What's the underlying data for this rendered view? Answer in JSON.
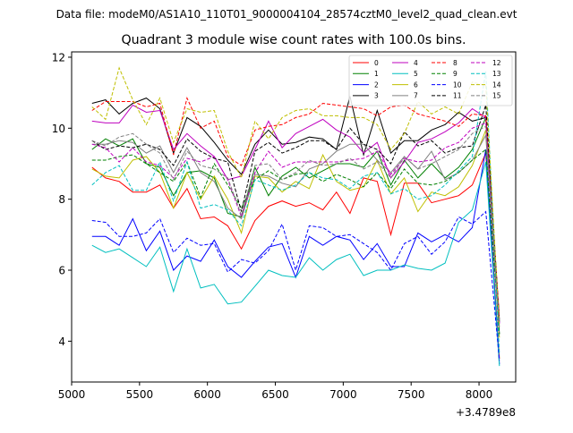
{
  "figure": {
    "suptitle": "Data file: modeM0/AS1A10_110T01_9000004104_28574cztM0_level2_quad_clean.evt"
  },
  "chart_data": {
    "type": "line",
    "title": "Quadrant 3 module wise count rates with 100.0s bins.",
    "xlabel": "",
    "ylabel": "",
    "x_offset_label": "+3.4789e8",
    "xlim": [
      5000,
      8270
    ],
    "ylim": [
      2.85,
      12.15
    ],
    "xticks": [
      "5000",
      "5500",
      "6000",
      "6500",
      "7000",
      "7500",
      "8000"
    ],
    "yticks": [
      "4",
      "6",
      "8",
      "10",
      "12"
    ],
    "x": [
      5150,
      5250,
      5350,
      5450,
      5550,
      5650,
      5750,
      5850,
      5950,
      6050,
      6150,
      6250,
      6350,
      6450,
      6550,
      6650,
      6750,
      6850,
      6950,
      7050,
      7150,
      7250,
      7350,
      7450,
      7550,
      7650,
      7750,
      7850,
      7950,
      8050,
      8150
    ],
    "legend": {
      "position": "upper right",
      "columns": 4
    },
    "series": [
      {
        "name": "0",
        "color": "#ff0000",
        "dash": "solid",
        "values": [
          8.9,
          8.6,
          8.5,
          8.2,
          8.2,
          8.4,
          7.75,
          8.3,
          7.45,
          7.5,
          7.25,
          6.6,
          7.4,
          7.8,
          7.95,
          7.8,
          7.9,
          7.7,
          8.2,
          7.6,
          8.6,
          8.5,
          7.0,
          8.45,
          8.45,
          7.9,
          8.0,
          8.1,
          8.4,
          9.3,
          3.5
        ]
      },
      {
        "name": "1",
        "color": "#008000",
        "dash": "solid",
        "values": [
          9.4,
          9.7,
          9.5,
          9.7,
          9.0,
          8.9,
          8.1,
          8.75,
          8.8,
          8.6,
          7.6,
          7.5,
          8.9,
          8.1,
          8.65,
          8.9,
          8.6,
          8.8,
          9.0,
          9.0,
          8.9,
          9.35,
          8.4,
          9.1,
          8.6,
          9.0,
          8.6,
          8.9,
          9.4,
          10.3,
          4.2
        ]
      },
      {
        "name": "2",
        "color": "#0000ff",
        "dash": "solid",
        "values": [
          6.95,
          6.95,
          6.7,
          7.45,
          6.55,
          7.1,
          6.0,
          6.4,
          6.25,
          6.85,
          6.1,
          5.8,
          6.25,
          6.65,
          6.75,
          5.8,
          6.95,
          6.7,
          6.95,
          6.85,
          6.3,
          6.75,
          6.1,
          6.1,
          7.05,
          6.8,
          7.0,
          6.8,
          7.2,
          9.4,
          3.35
        ]
      },
      {
        "name": "3",
        "color": "#000000",
        "dash": "solid",
        "values": [
          10.7,
          10.8,
          10.4,
          10.7,
          10.85,
          10.55,
          9.3,
          10.3,
          10.05,
          9.6,
          9.1,
          8.7,
          9.55,
          9.95,
          9.55,
          9.6,
          9.75,
          9.7,
          9.4,
          10.9,
          9.25,
          10.5,
          9.3,
          9.65,
          9.65,
          9.95,
          10.1,
          10.45,
          10.2,
          10.3,
          4.6
        ]
      },
      {
        "name": "4",
        "color": "#bf00bf",
        "dash": "solid",
        "values": [
          10.2,
          10.15,
          10.15,
          10.65,
          10.45,
          10.5,
          9.4,
          9.85,
          9.5,
          9.2,
          8.55,
          8.65,
          9.4,
          10.2,
          9.45,
          9.85,
          10.05,
          10.25,
          9.95,
          9.75,
          9.3,
          9.6,
          8.6,
          9.05,
          9.6,
          9.7,
          9.9,
          10.15,
          10.55,
          10.3,
          4.5
        ]
      },
      {
        "name": "5",
        "color": "#00bfbf",
        "dash": "solid",
        "values": [
          6.7,
          6.5,
          6.6,
          6.35,
          6.1,
          6.65,
          5.4,
          6.6,
          5.5,
          5.6,
          5.05,
          5.1,
          5.55,
          6.0,
          5.85,
          5.8,
          6.35,
          6.0,
          6.3,
          6.45,
          5.85,
          6.0,
          6.0,
          6.15,
          6.05,
          6.0,
          6.2,
          7.35,
          7.7,
          9.05,
          3.3
        ]
      },
      {
        "name": "6",
        "color": "#bfbf00",
        "dash": "solid",
        "values": [
          8.85,
          8.65,
          8.6,
          9.1,
          9.2,
          8.75,
          7.75,
          8.75,
          8.0,
          8.65,
          8.0,
          7.05,
          8.65,
          8.6,
          8.2,
          8.5,
          8.3,
          9.25,
          8.5,
          8.25,
          8.35,
          9.1,
          8.15,
          8.6,
          7.65,
          8.2,
          8.1,
          8.35,
          8.95,
          9.95,
          4.1
        ]
      },
      {
        "name": "7",
        "color": "#808080",
        "dash": "solid",
        "values": [
          9.55,
          9.55,
          9.65,
          9.6,
          9.3,
          9.5,
          8.75,
          9.45,
          8.75,
          8.5,
          7.75,
          7.45,
          8.7,
          8.65,
          8.45,
          8.35,
          8.85,
          9.0,
          9.35,
          9.55,
          9.55,
          9.1,
          8.75,
          9.2,
          8.85,
          9.35,
          8.55,
          8.75,
          9.1,
          9.8,
          4.2
        ]
      },
      {
        "name": "8",
        "color": "#ff0000",
        "dash": "dashed",
        "values": [
          10.5,
          10.75,
          10.75,
          10.75,
          10.6,
          10.7,
          9.25,
          10.85,
          10.0,
          10.2,
          9.2,
          8.95,
          9.95,
          10.05,
          10.1,
          10.3,
          10.4,
          10.7,
          10.65,
          10.6,
          10.55,
          10.35,
          10.6,
          10.65,
          10.4,
          10.3,
          10.2,
          10.05,
          10.4,
          10.35,
          4.65
        ]
      },
      {
        "name": "9",
        "color": "#008000",
        "dash": "dashed",
        "values": [
          9.1,
          9.1,
          9.2,
          9.25,
          9.0,
          8.75,
          8.5,
          9.05,
          8.05,
          9.0,
          8.4,
          7.75,
          8.55,
          8.8,
          8.55,
          8.7,
          8.75,
          8.5,
          8.7,
          8.55,
          8.35,
          8.75,
          8.3,
          8.85,
          8.45,
          8.4,
          8.5,
          8.75,
          9.1,
          9.4,
          4.2
        ]
      },
      {
        "name": "10",
        "color": "#0000ff",
        "dash": "dashed",
        "values": [
          7.4,
          7.35,
          6.95,
          6.95,
          7.05,
          7.45,
          6.5,
          6.9,
          6.7,
          6.75,
          5.95,
          6.3,
          6.2,
          6.55,
          7.3,
          6.0,
          7.25,
          7.2,
          6.95,
          7.0,
          6.75,
          6.5,
          6.0,
          6.75,
          6.95,
          6.45,
          6.8,
          7.5,
          7.3,
          7.65,
          3.45
        ]
      },
      {
        "name": "11",
        "color": "#000000",
        "dash": "dashed",
        "values": [
          9.65,
          9.4,
          9.5,
          9.45,
          9.55,
          9.4,
          8.95,
          9.7,
          9.35,
          9.15,
          9.05,
          7.65,
          9.35,
          9.6,
          9.3,
          9.45,
          9.65,
          9.65,
          9.4,
          10.0,
          9.55,
          9.4,
          9.0,
          9.9,
          9.5,
          9.65,
          9.3,
          9.45,
          9.5,
          10.65,
          4.55
        ]
      },
      {
        "name": "12",
        "color": "#bf00bf",
        "dash": "dashed",
        "values": [
          9.55,
          9.45,
          9.05,
          9.45,
          9.05,
          8.95,
          8.6,
          9.15,
          9.05,
          9.2,
          8.55,
          7.5,
          8.75,
          9.35,
          8.9,
          9.05,
          9.05,
          9.05,
          9.05,
          9.1,
          9.15,
          9.35,
          8.7,
          9.15,
          9.05,
          9.1,
          9.45,
          9.6,
          10.0,
          10.15,
          4.5
        ]
      },
      {
        "name": "13",
        "color": "#00bfbf",
        "dash": "dashed",
        "values": [
          8.4,
          8.75,
          8.95,
          8.25,
          8.25,
          9.05,
          7.95,
          9.05,
          7.75,
          7.85,
          7.7,
          7.25,
          8.55,
          8.4,
          8.25,
          8.4,
          8.75,
          8.6,
          8.55,
          8.3,
          8.65,
          8.75,
          8.15,
          8.3,
          8.0,
          8.1,
          8.4,
          8.8,
          9.2,
          11.6,
          3.65
        ]
      },
      {
        "name": "14",
        "color": "#bfbf00",
        "dash": "dashed",
        "values": [
          10.6,
          10.25,
          11.7,
          10.8,
          10.1,
          10.85,
          9.6,
          10.55,
          10.45,
          10.5,
          9.35,
          8.6,
          10.2,
          9.7,
          10.3,
          10.5,
          10.55,
          10.35,
          10.35,
          10.3,
          10.3,
          10.1,
          9.4,
          9.85,
          10.75,
          10.4,
          10.6,
          10.4,
          11.3,
          11.2,
          4.4
        ]
      },
      {
        "name": "15",
        "color": "#808080",
        "dash": "dashed",
        "values": [
          9.65,
          9.5,
          9.75,
          9.85,
          9.55,
          9.3,
          8.55,
          9.35,
          8.95,
          8.85,
          8.6,
          7.55,
          8.95,
          9.0,
          8.55,
          8.75,
          9.1,
          8.95,
          9.0,
          9.15,
          8.85,
          9.05,
          8.6,
          9.2,
          8.85,
          9.0,
          9.2,
          9.4,
          9.85,
          10.05,
          4.4
        ]
      }
    ]
  }
}
